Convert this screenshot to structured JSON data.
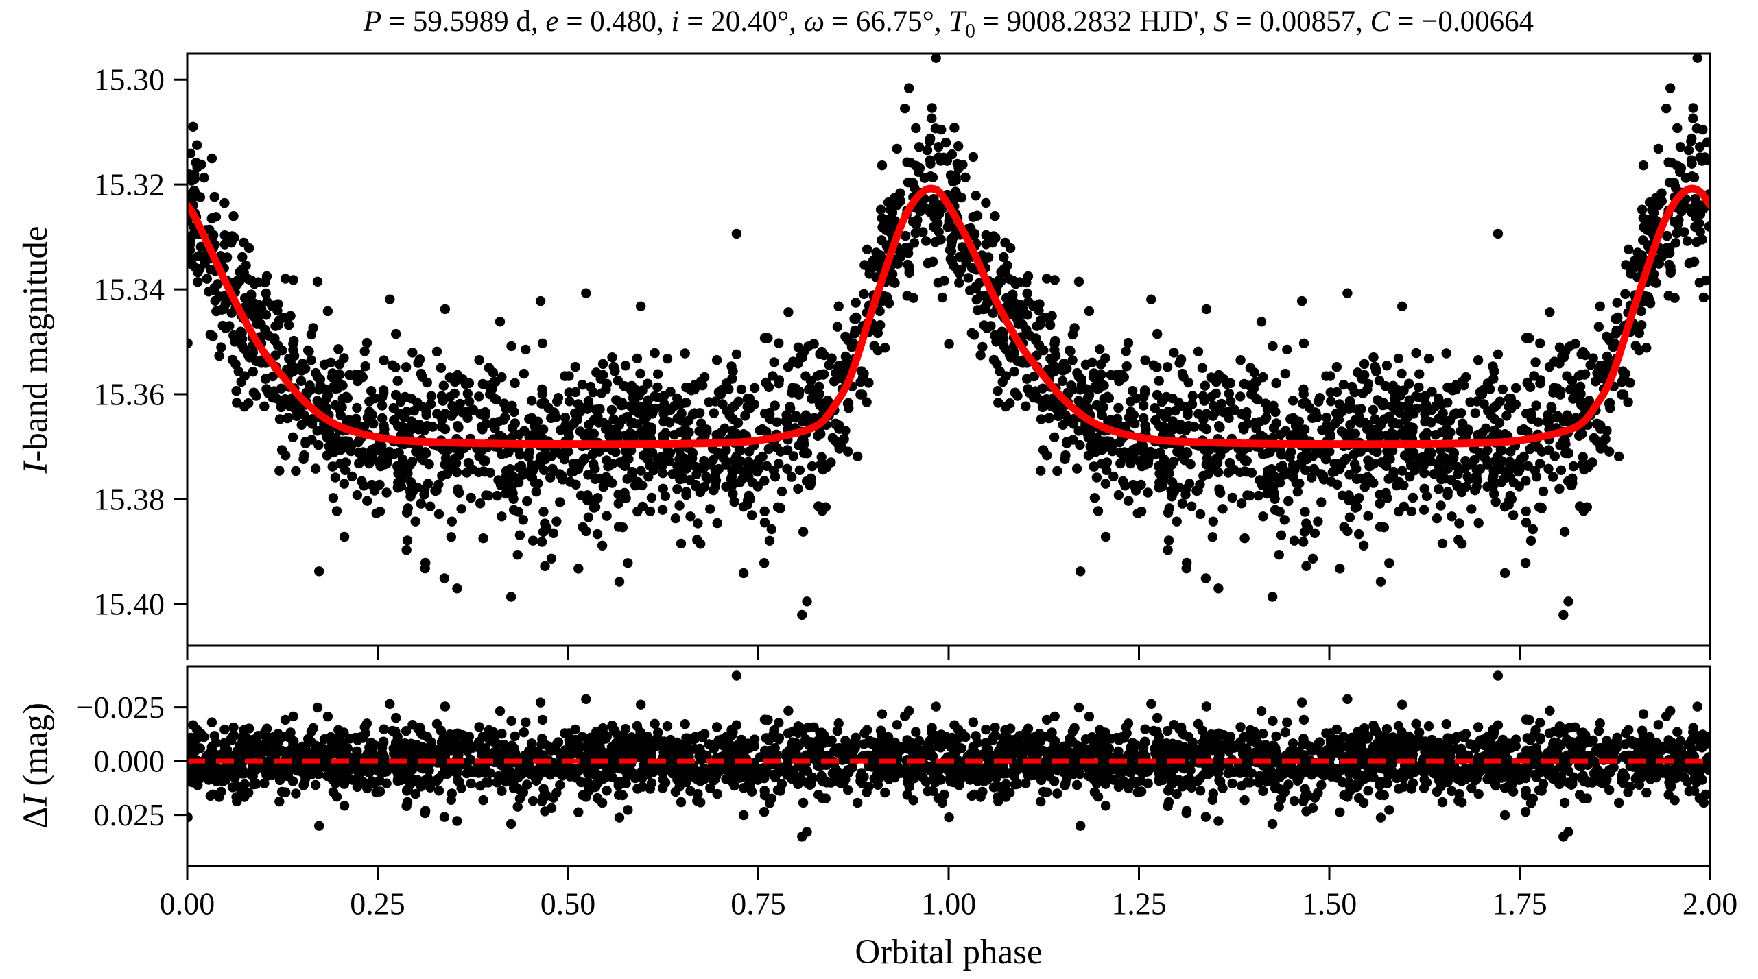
{
  "figure": {
    "background_color": "#ffffff",
    "title_segments": [
      {
        "t": "P",
        "i": true
      },
      {
        "t": " = 59.5989 d, "
      },
      {
        "t": "e",
        "i": true
      },
      {
        "t": " = 0.480, "
      },
      {
        "t": "i",
        "i": true
      },
      {
        "t": " = 20.40°, "
      },
      {
        "t": "ω",
        "i": true
      },
      {
        "t": " = 66.75°, "
      },
      {
        "t": "T",
        "i": true
      },
      {
        "t": "0",
        "sub": true
      },
      {
        "t": " = 9008.2832 HJD', "
      },
      {
        "t": "S",
        "i": true
      },
      {
        "t": " = 0.00857, "
      },
      {
        "t": "C",
        "i": true
      },
      {
        "t": " = −0.00664"
      }
    ],
    "xlabel_segments": [
      {
        "t": "Orbital phase"
      }
    ],
    "ylabel_main_segments": [
      {
        "t": "I",
        "i": true
      },
      {
        "t": "-band magnitude"
      }
    ],
    "ylabel_residual_segments": [
      {
        "t": "Δ"
      },
      {
        "t": "I",
        "i": true
      },
      {
        "t": " (mag)"
      }
    ]
  },
  "chart_data": [
    {
      "type": "scatter",
      "panel": "main",
      "title": "P = 59.5989 d, e = 0.480, i = 20.40°, ω = 66.75°, T0 = 9008.2832 HJD', S = 0.00857, C = −0.00664",
      "xlabel": "Orbital phase",
      "ylabel": "I-band magnitude",
      "xlim": [
        0.0,
        2.0
      ],
      "ylim_top": 15.295,
      "ylim_bottom": 15.408,
      "y_axis_inverted": true,
      "grid": false,
      "x_ticks": [
        0.0,
        0.25,
        0.5,
        0.75,
        1.0,
        1.25,
        1.5,
        1.75,
        2.0
      ],
      "x_tick_labels": [
        "0.00",
        "0.25",
        "0.50",
        "0.75",
        "1.00",
        "1.25",
        "1.50",
        "1.75",
        "2.00"
      ],
      "x_tick_labels_shown": false,
      "y_ticks": [
        15.3,
        15.32,
        15.34,
        15.36,
        15.38,
        15.4
      ],
      "y_tick_labels": [
        "15.30",
        "15.32",
        "15.34",
        "15.36",
        "15.38",
        "15.40"
      ],
      "series": [
        {
          "name": "observed I-band photometry",
          "type": "scatter",
          "color": "#000000",
          "points_note": "dense phase-folded photometry, each observation plotted at phase and phase+1; reproduced procedurally",
          "scatter_spec": {
            "seed": 7,
            "n_base_points": 1600,
            "phase_range": [
              0.0,
              1.0
            ],
            "duplicate_shift": 1.0,
            "residual_sigma_mag": 0.008,
            "outlier_fraction": 0.025,
            "outlier_sigma_mag": 0.02
          }
        },
        {
          "name": "eccentric-binary model light curve",
          "type": "line",
          "color": "#ff0000",
          "peak_phase": 0.979,
          "peak_mag": 15.3208,
          "baseline_mag": 15.3695,
          "anchors": {
            "phase": [
              0.0,
              0.01,
              0.03,
              0.051,
              0.072,
              0.094,
              0.121,
              0.15,
              0.18,
              0.21,
              0.25,
              0.3,
              0.4,
              0.5,
              0.6,
              0.7,
              0.75,
              0.8,
              0.83,
              0.85,
              0.871,
              0.895,
              0.91,
              0.925,
              0.94,
              0.955,
              0.968,
              0.979,
              0.99,
              1.009,
              1.031,
              1.051,
              1.072,
              1.094,
              1.121,
              1.15,
              1.18,
              1.21,
              1.25,
              1.3,
              1.4,
              1.5,
              1.6,
              1.7,
              1.75,
              1.8,
              1.83,
              1.85,
              1.871,
              1.895,
              1.91,
              1.925,
              1.94,
              1.955,
              1.968,
              1.979,
              1.99,
              2.0
            ],
            "mag": [
              15.324,
              15.3262,
              15.3323,
              15.3388,
              15.3449,
              15.3506,
              15.3558,
              15.3608,
              15.3645,
              15.3667,
              15.3682,
              15.369,
              15.3694,
              15.3695,
              15.3695,
              15.3693,
              15.3688,
              15.3674,
              15.3657,
              15.3622,
              15.3567,
              15.3459,
              15.3393,
              15.3328,
              15.327,
              15.3231,
              15.3212,
              15.3208,
              15.3218,
              15.3262,
              15.3323,
              15.3388,
              15.3449,
              15.3506,
              15.3558,
              15.3608,
              15.3645,
              15.3667,
              15.3682,
              15.369,
              15.3694,
              15.3695,
              15.3695,
              15.3693,
              15.3688,
              15.3674,
              15.3657,
              15.3622,
              15.3567,
              15.3459,
              15.3393,
              15.3328,
              15.327,
              15.3231,
              15.3212,
              15.3208,
              15.3218,
              15.324
            ]
          }
        }
      ]
    },
    {
      "type": "scatter",
      "panel": "residuals",
      "ylabel": "ΔI (mag)",
      "xlim": [
        0.0,
        2.0
      ],
      "ylim_top": -0.044,
      "ylim_bottom": 0.0487,
      "y_axis_inverted": true,
      "grid": false,
      "x_ticks": [
        0.0,
        0.25,
        0.5,
        0.75,
        1.0,
        1.25,
        1.5,
        1.75,
        2.0
      ],
      "x_tick_labels": [
        "0.00",
        "0.25",
        "0.50",
        "0.75",
        "1.00",
        "1.25",
        "1.50",
        "1.75",
        "2.00"
      ],
      "x_tick_labels_shown": true,
      "y_ticks": [
        -0.025,
        0.0,
        0.025
      ],
      "y_tick_labels": [
        "−0.025",
        "0.000",
        "0.025"
      ],
      "series": [
        {
          "name": "observed minus model residuals",
          "type": "scatter",
          "color": "#000000",
          "points_note": "same residual realization as main panel scatter"
        },
        {
          "name": "zero residual reference",
          "type": "line",
          "style": "dashed",
          "color": "#ff0000",
          "value": 0.0
        }
      ]
    }
  ]
}
